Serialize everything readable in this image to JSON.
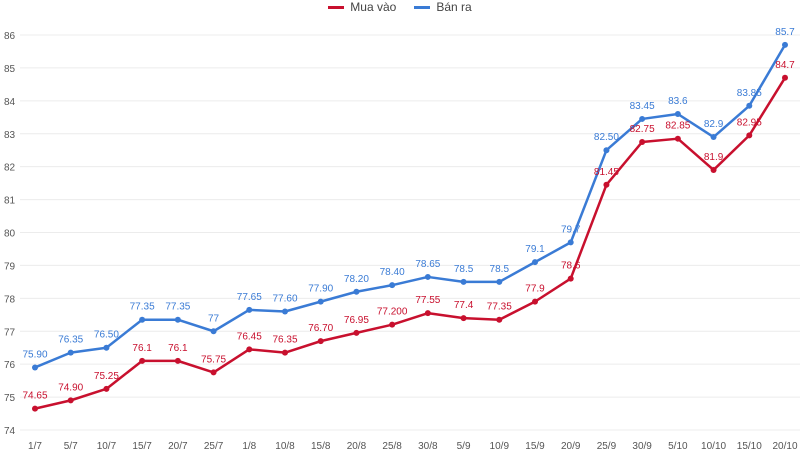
{
  "chart_data": {
    "type": "line",
    "title": "",
    "xlabel": "",
    "ylabel": "",
    "ylim": [
      74,
      86
    ],
    "yticks": [
      74,
      75,
      76,
      77,
      78,
      79,
      80,
      81,
      82,
      83,
      84,
      85,
      86
    ],
    "grid": true,
    "legend_position": "top-center",
    "categories": [
      "1/7",
      "5/7",
      "10/7",
      "15/7",
      "20/7",
      "25/7",
      "1/8",
      "10/8",
      "15/8",
      "20/8",
      "25/8",
      "30/8",
      "5/9",
      "10/9",
      "15/9",
      "20/9",
      "25/9",
      "30/9",
      "5/10",
      "10/10",
      "15/10",
      "20/10"
    ],
    "series": [
      {
        "name": "Mua vào",
        "color": "#c8102e",
        "values": [
          74.65,
          74.9,
          75.25,
          76.1,
          76.1,
          75.75,
          76.45,
          76.35,
          76.7,
          76.95,
          77.2,
          77.55,
          77.4,
          77.35,
          77.9,
          78.6,
          81.45,
          82.75,
          82.85,
          81.9,
          82.95,
          84.7
        ],
        "labels": [
          "74.65",
          "74.90",
          "75.25",
          "76.1",
          "76.1",
          "75.75",
          "76.45",
          "76.35",
          "76.70",
          "76.95",
          "77.200",
          "77.55",
          "77.4",
          "77.35",
          "77.9",
          "78.6",
          "81.45",
          "82.75",
          "82.85",
          "81.9",
          "82.95",
          "84.7"
        ]
      },
      {
        "name": "Bán ra",
        "color": "#3a7bd5",
        "values": [
          75.9,
          76.35,
          76.5,
          77.35,
          77.35,
          77,
          77.65,
          77.6,
          77.9,
          78.2,
          78.4,
          78.65,
          78.5,
          78.5,
          79.1,
          79.7,
          82.5,
          83.45,
          83.6,
          82.9,
          83.85,
          85.7
        ],
        "labels": [
          "75.90",
          "76.35",
          "76.50",
          "77.35",
          "77.35",
          "77",
          "77.65",
          "77.60",
          "77.90",
          "78.20",
          "78.40",
          "78.65",
          "78.5",
          "78.5",
          "79.1",
          "79.7",
          "82.50",
          "83.45",
          "83.6",
          "82.9",
          "83.85",
          "85.7"
        ]
      }
    ]
  }
}
